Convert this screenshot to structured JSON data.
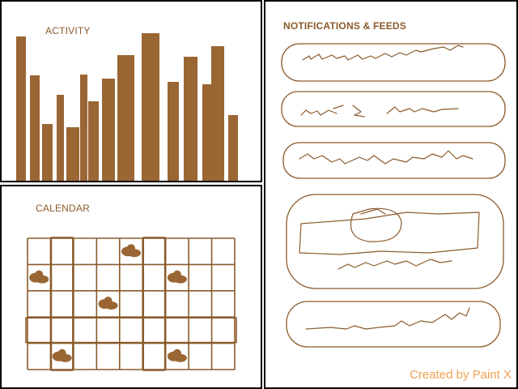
{
  "activity": {
    "title": "ACTIVITY",
    "bar_color": "#9a6634"
  },
  "chart_data": {
    "type": "bar",
    "title": "ACTIVITY",
    "xlabel": "",
    "ylabel": "",
    "ylim": [
      0,
      185
    ],
    "values": [
      178,
      130,
      70,
      106,
      66,
      131,
      98,
      126,
      155,
      182,
      122,
      153,
      119,
      166,
      81
    ]
  },
  "calendar": {
    "title": "CALENDAR",
    "rows": 5,
    "cols": 9,
    "highlighted_columns": [
      1,
      5
    ],
    "highlighted_rows": [
      3
    ],
    "marked_cells": [
      {
        "row": 0,
        "col": 4
      },
      {
        "row": 1,
        "col": 0
      },
      {
        "row": 1,
        "col": 6
      },
      {
        "row": 2,
        "col": 3
      },
      {
        "row": 4,
        "col": 1
      },
      {
        "row": 4,
        "col": 6
      }
    ],
    "line_color": "#8a5a2b",
    "mark_color": "#9a6634"
  },
  "feeds": {
    "title": "NOTIFICATIONS & FEEDS",
    "card_count": 5,
    "stroke_color": "#8a5a2b"
  },
  "credit": "Created by Paint X",
  "colors": {
    "accent": "#8a5a2b",
    "credit": "#f0a050",
    "panel_border": "#000000"
  }
}
